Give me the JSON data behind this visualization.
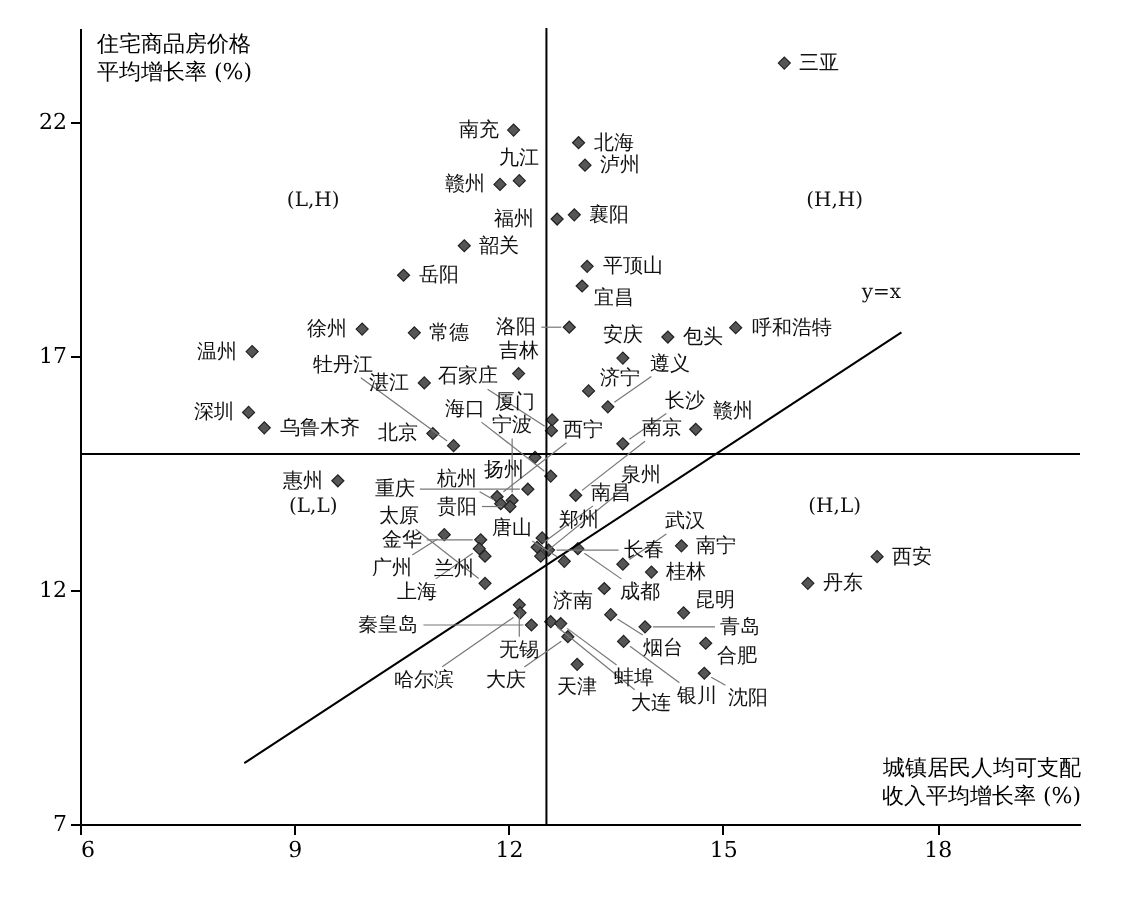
{
  "chart_data": {
    "type": "scatter",
    "xlabel": "城镇居民人均可支配收入平均增长率 (%)",
    "ylabel": "住宅商品房价格平均增长率 (%)",
    "xlim": [
      6,
      20
    ],
    "ylim": [
      7,
      24
    ],
    "xticks": [
      6,
      9,
      12,
      15,
      18
    ],
    "yticks": [
      7,
      12,
      17,
      22
    ],
    "grid": false,
    "ref_lines": [
      {
        "axis": "x",
        "value": 12.53,
        "color": "#000000"
      },
      {
        "axis": "y",
        "value": 14.9,
        "color": "#000000"
      }
    ],
    "series": [
      {
        "color": "#555555",
        "marker": "diamond",
        "x": [
          15.86,
          12.07,
          12.98,
          13.07,
          12.15,
          11.88,
          12.68,
          12.92,
          11.38,
          13.1,
          13.03,
          10.53,
          12.85,
          14.23,
          15.18,
          9.95,
          10.68,
          8.41,
          13.6,
          12.14,
          10.82,
          13.12,
          13.39,
          8.36,
          8.58,
          12.61,
          12.6,
          10.94,
          11.23,
          14.62,
          13.6,
          12.37,
          12.59,
          9.61,
          12.27,
          12.94,
          11.84,
          12.05,
          11.89,
          12.02,
          11.1,
          11.61,
          11.59,
          11.67,
          12.47,
          12.4,
          12.56,
          12.97,
          12.45,
          12.78,
          13.6,
          14.42,
          14.0,
          13.34,
          11.67,
          12.15,
          13.43,
          14.45,
          12.16,
          12.32,
          12.59,
          12.73,
          12.83,
          13.91,
          13.61,
          14.76,
          12.96,
          14.74,
          17.16,
          16.19
        ],
        "values": [
          23.25,
          21.82,
          21.55,
          21.07,
          20.74,
          20.66,
          19.92,
          20.01,
          19.35,
          18.91,
          18.49,
          18.72,
          17.61,
          17.4,
          17.6,
          17.57,
          17.49,
          17.09,
          16.95,
          16.62,
          16.42,
          16.25,
          15.91,
          15.79,
          15.46,
          15.63,
          15.4,
          15.34,
          15.08,
          15.43,
          15.12,
          14.83,
          14.43,
          14.33,
          14.15,
          14.02,
          13.99,
          13.91,
          13.84,
          13.78,
          13.18,
          13.07,
          12.88,
          12.72,
          13.11,
          12.91,
          12.85,
          12.88,
          12.72,
          12.61,
          12.55,
          12.94,
          12.38,
          12.03,
          12.14,
          11.68,
          11.47,
          11.51,
          11.51,
          11.25,
          11.32,
          11.28,
          11.0,
          11.21,
          10.9,
          10.86,
          10.41,
          10.22,
          12.71,
          12.14
        ]
      },
      {
        "type": "line",
        "color": "#000000",
        "x": [
          8.3,
          17.5
        ],
        "values": [
          8.3,
          17.5
        ]
      }
    ],
    "annotations": [
      {
        "text": "三亚",
        "x": 15.86,
        "y": 23.25
      },
      {
        "text": "南充",
        "x": 12.07,
        "y": 21.82
      },
      {
        "text": "北海",
        "x": 12.98,
        "y": 21.55
      },
      {
        "text": "泸州",
        "x": 13.07,
        "y": 21.07
      },
      {
        "text": "九江",
        "x": 12.15,
        "y": 20.74
      },
      {
        "text": "赣州",
        "x": 11.88,
        "y": 20.66
      },
      {
        "text": "福州",
        "x": 12.68,
        "y": 19.92
      },
      {
        "text": "襄阳",
        "x": 12.92,
        "y": 20.01
      },
      {
        "text": "韶关",
        "x": 11.38,
        "y": 19.35
      },
      {
        "text": "平顶山",
        "x": 13.1,
        "y": 18.91
      },
      {
        "text": "宜昌",
        "x": 13.03,
        "y": 18.49
      },
      {
        "text": "岳阳",
        "x": 10.53,
        "y": 18.72
      },
      {
        "text": "洛阳",
        "x": 12.85,
        "y": 17.61
      },
      {
        "text": "包头",
        "x": 14.23,
        "y": 17.4
      },
      {
        "text": "呼和浩特",
        "x": 15.18,
        "y": 17.6
      },
      {
        "text": "徐州",
        "x": 9.95,
        "y": 17.57
      },
      {
        "text": "常德",
        "x": 10.68,
        "y": 17.49
      },
      {
        "text": "温州",
        "x": 8.41,
        "y": 17.09
      },
      {
        "text": "安庆",
        "x": 13.6,
        "y": 16.95
      },
      {
        "text": "吉林",
        "x": 12.14,
        "y": 16.62
      },
      {
        "text": "湛江",
        "x": 10.82,
        "y": 16.42
      },
      {
        "text": "济宁",
        "x": 13.12,
        "y": 16.25
      },
      {
        "text": "遵义",
        "x": 13.39,
        "y": 15.91
      },
      {
        "text": "深圳",
        "x": 8.36,
        "y": 15.79
      },
      {
        "text": "乌鲁木齐",
        "x": 8.58,
        "y": 15.46
      },
      {
        "text": "厦门",
        "x": 12.61,
        "y": 15.63
      },
      {
        "text": "石家庄",
        "x": 12.6,
        "y": 15.4
      },
      {
        "text": "北京",
        "x": 10.94,
        "y": 15.34
      },
      {
        "text": "牡丹江",
        "x": 11.23,
        "y": 15.08
      },
      {
        "text": "赣州",
        "x": 14.62,
        "y": 15.43
      },
      {
        "text": "长沙",
        "x": 13.6,
        "y": 15.12
      },
      {
        "text": "扬州",
        "x": 12.37,
        "y": 14.83
      },
      {
        "text": "海口",
        "x": 12.59,
        "y": 14.43
      },
      {
        "text": "惠州",
        "x": 9.61,
        "y": 14.33
      },
      {
        "text": "重庆",
        "x": 12.27,
        "y": 14.15
      },
      {
        "text": "南京",
        "x": 12.94,
        "y": 14.02
      },
      {
        "text": "西宁",
        "x": 11.84,
        "y": 13.99
      },
      {
        "text": "宁波",
        "x": 12.05,
        "y": 13.91
      },
      {
        "text": "杭州",
        "x": 11.89,
        "y": 13.84
      },
      {
        "text": "贵阳",
        "x": 12.02,
        "y": 13.78
      },
      {
        "text": "广州",
        "x": 11.1,
        "y": 13.18
      },
      {
        "text": "金华",
        "x": 11.61,
        "y": 13.07
      },
      {
        "text": "上海",
        "x": 11.59,
        "y": 12.88
      },
      {
        "text": "兰州",
        "x": 11.67,
        "y": 12.72
      },
      {
        "text": "郑州",
        "x": 12.47,
        "y": 13.11
      },
      {
        "text": "南昌",
        "x": 12.4,
        "y": 12.91
      },
      {
        "text": "长春",
        "x": 12.56,
        "y": 12.85
      },
      {
        "text": "成都",
        "x": 12.97,
        "y": 12.88
      },
      {
        "text": "泉州",
        "x": 12.45,
        "y": 12.72
      },
      {
        "text": "唐山",
        "x": 12.78,
        "y": 12.61
      },
      {
        "text": "武汉",
        "x": 13.6,
        "y": 12.55
      },
      {
        "text": "南宁",
        "x": 14.42,
        "y": 12.94
      },
      {
        "text": "桂林",
        "x": 14.0,
        "y": 12.38
      },
      {
        "text": "济南",
        "x": 13.34,
        "y": 12.03
      },
      {
        "text": "太原",
        "x": 11.67,
        "y": 12.14
      },
      {
        "text": "无锡",
        "x": 12.15,
        "y": 11.68
      },
      {
        "text": "烟台",
        "x": 13.43,
        "y": 11.47
      },
      {
        "text": "昆明",
        "x": 14.45,
        "y": 11.51
      },
      {
        "text": "哈尔滨",
        "x": 12.16,
        "y": 11.51
      },
      {
        "text": "秦皇岛",
        "x": 12.32,
        "y": 11.25
      },
      {
        "text": "大连",
        "x": 12.59,
        "y": 11.32
      },
      {
        "text": "蚌埠",
        "x": 12.73,
        "y": 11.28
      },
      {
        "text": "大庆",
        "x": 12.83,
        "y": 11.0
      },
      {
        "text": "青岛",
        "x": 13.91,
        "y": 11.21
      },
      {
        "text": "银川",
        "x": 13.61,
        "y": 10.9
      },
      {
        "text": "合肥",
        "x": 14.76,
        "y": 10.86
      },
      {
        "text": "天津",
        "x": 12.96,
        "y": 10.41
      },
      {
        "text": "沈阳",
        "x": 14.74,
        "y": 10.22
      },
      {
        "text": "西安",
        "x": 17.16,
        "y": 12.71
      },
      {
        "text": "丹东",
        "x": 16.19,
        "y": 12.14
      },
      "(L,H)",
      "(H,H)",
      "(L,L)",
      "(H,L)",
      "y=x"
    ]
  }
}
